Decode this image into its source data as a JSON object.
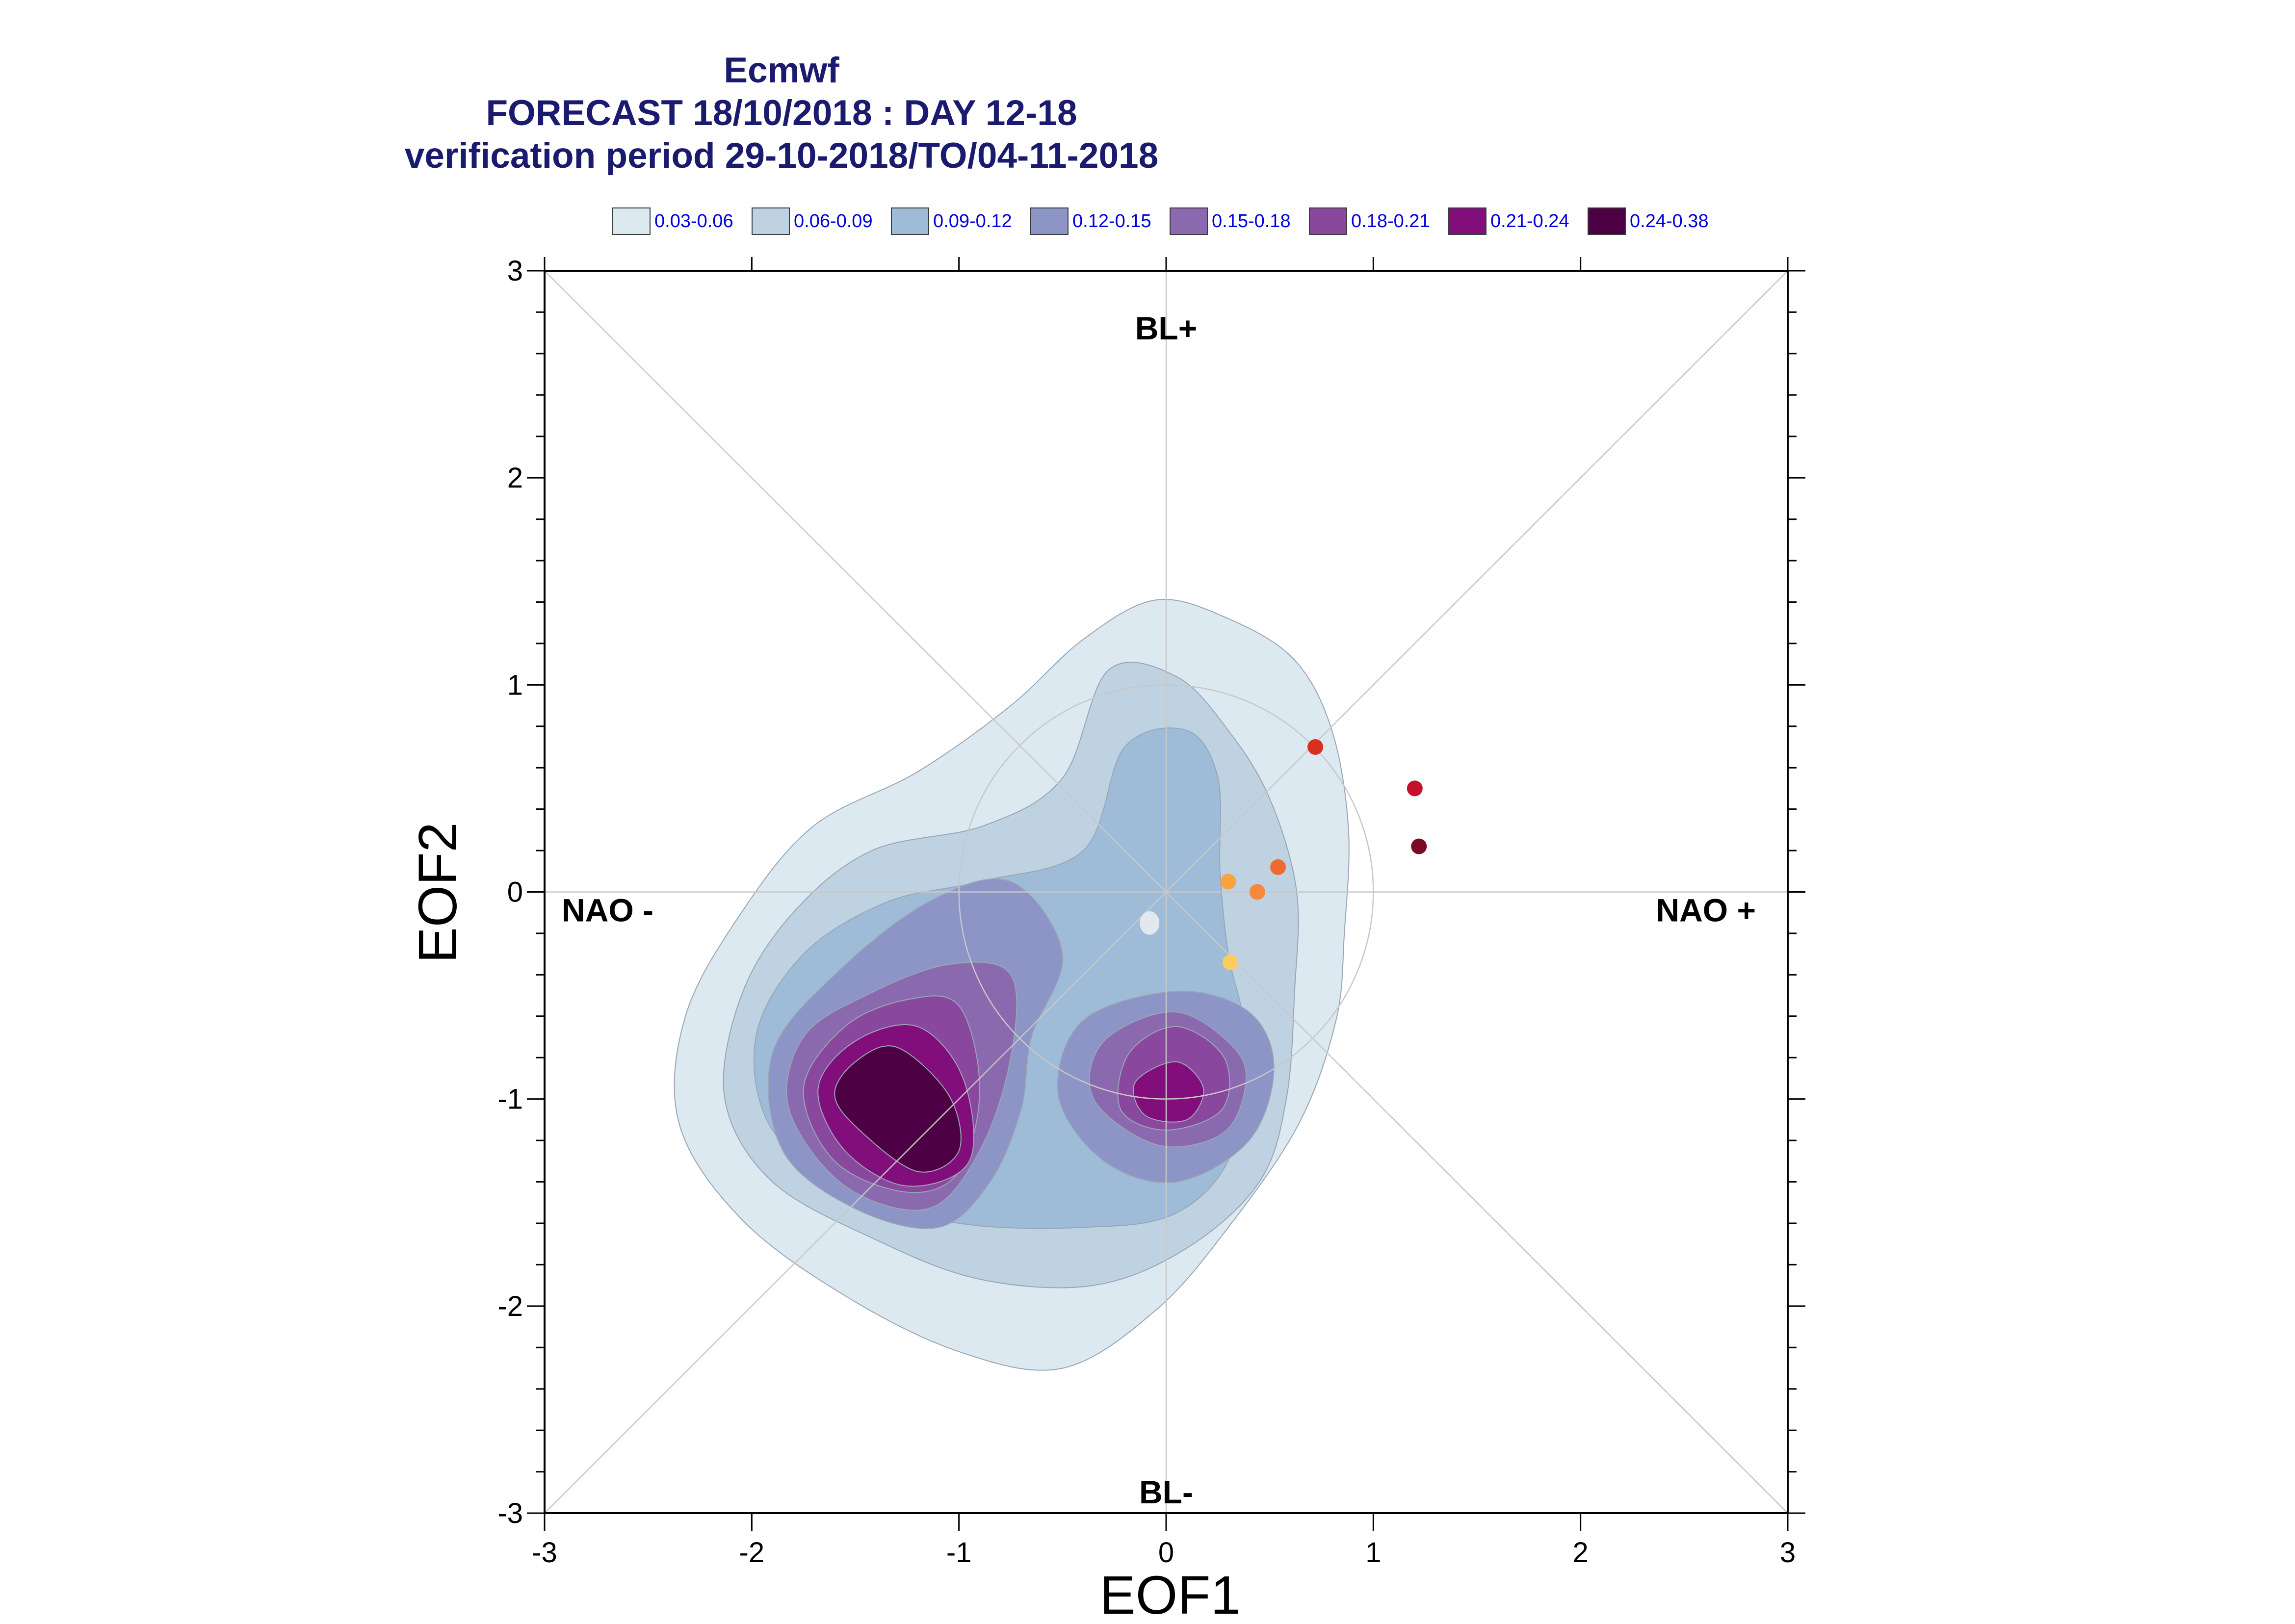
{
  "titles": {
    "line1": "Ecmwf",
    "line2": "FORECAST 18/10/2018 : DAY 12-18",
    "line3": "verification period 29-10-2018/TO/04-11-2018"
  },
  "legend": [
    {
      "label": "0.03-0.06",
      "color": "#dde9f1"
    },
    {
      "label": "0.06-0.09",
      "color": "#bed2e2"
    },
    {
      "label": "0.09-0.12",
      "color": "#9ebcd8"
    },
    {
      "label": "0.12-0.15",
      "color": "#8c95c5"
    },
    {
      "label": "0.15-0.18",
      "color": "#8a69ae"
    },
    {
      "label": "0.18-0.21",
      "color": "#8a479e"
    },
    {
      "label": "0.21-0.24",
      "color": "#820e7b"
    },
    {
      "label": "0.24-0.38",
      "color": "#4e0045"
    }
  ],
  "chart_data": {
    "type": "scatter",
    "xlabel": "EOF1",
    "ylabel": "EOF2",
    "xlim": [
      -3,
      3
    ],
    "ylim": [
      -3,
      3
    ],
    "xticks": [
      -3,
      -2,
      -1,
      0,
      1,
      2,
      3
    ],
    "yticks": [
      -3,
      -2,
      -1,
      0,
      1,
      2,
      3
    ],
    "regime_labels": {
      "top": "BL+",
      "bottom": "BL-",
      "left": "NAO -",
      "right": "NAO +"
    },
    "reference_circle_radius": 1.0,
    "points": [
      {
        "x": 0.72,
        "y": 0.7,
        "color": "#d7301f"
      },
      {
        "x": 1.2,
        "y": 0.5,
        "color": "#c3102f"
      },
      {
        "x": 1.22,
        "y": 0.22,
        "color": "#7a0a26"
      },
      {
        "x": 0.54,
        "y": 0.12,
        "color": "#ef6a30"
      },
      {
        "x": 0.3,
        "y": 0.05,
        "color": "#f7a43f"
      },
      {
        "x": 0.44,
        "y": 0.0,
        "color": "#f5883a"
      },
      {
        "x": 0.31,
        "y": -0.34,
        "color": "#fdcc5c"
      }
    ],
    "density_contours": [
      {
        "level": "0.03-0.06",
        "polygons": [
          [
            [
              -0.05,
              1.41
            ],
            [
              0.3,
              1.32
            ],
            [
              0.62,
              1.12
            ],
            [
              0.8,
              0.78
            ],
            [
              0.88,
              0.3
            ],
            [
              0.86,
              -0.2
            ],
            [
              0.82,
              -0.62
            ],
            [
              0.64,
              -1.12
            ],
            [
              0.3,
              -1.62
            ],
            [
              -0.05,
              -2.02
            ],
            [
              -0.5,
              -2.3
            ],
            [
              -1.0,
              -2.22
            ],
            [
              -1.55,
              -1.95
            ],
            [
              -2.05,
              -1.58
            ],
            [
              -2.35,
              -1.12
            ],
            [
              -2.32,
              -0.6
            ],
            [
              -2.05,
              -0.1
            ],
            [
              -1.7,
              0.32
            ],
            [
              -1.2,
              0.58
            ],
            [
              -0.75,
              0.9
            ],
            [
              -0.4,
              1.22
            ]
          ]
        ]
      },
      {
        "level": "0.06-0.09",
        "polygons": [
          [
            [
              -0.28,
              1.07
            ],
            [
              0.05,
              1.04
            ],
            [
              0.3,
              0.78
            ],
            [
              0.5,
              0.45
            ],
            [
              0.63,
              0.0
            ],
            [
              0.62,
              -0.48
            ],
            [
              0.58,
              -1.0
            ],
            [
              0.45,
              -1.4
            ],
            [
              0.1,
              -1.72
            ],
            [
              -0.35,
              -1.9
            ],
            [
              -0.9,
              -1.87
            ],
            [
              -1.4,
              -1.68
            ],
            [
              -1.9,
              -1.4
            ],
            [
              -2.13,
              -1.0
            ],
            [
              -2.05,
              -0.5
            ],
            [
              -1.8,
              -0.1
            ],
            [
              -1.42,
              0.2
            ],
            [
              -0.88,
              0.32
            ],
            [
              -0.5,
              0.55
            ]
          ]
        ]
      },
      {
        "level": "0.09-0.12",
        "polygons": [
          [
            [
              -0.2,
              0.7
            ],
            [
              0.1,
              0.78
            ],
            [
              0.25,
              0.55
            ],
            [
              0.26,
              0.1
            ],
            [
              0.3,
              -0.3
            ],
            [
              0.38,
              -0.7
            ],
            [
              0.32,
              -1.25
            ],
            [
              0.05,
              -1.55
            ],
            [
              -0.4,
              -1.62
            ],
            [
              -1.0,
              -1.6
            ],
            [
              -1.5,
              -1.45
            ],
            [
              -1.9,
              -1.15
            ],
            [
              -1.98,
              -0.7
            ],
            [
              -1.75,
              -0.3
            ],
            [
              -1.35,
              -0.05
            ],
            [
              -0.9,
              0.05
            ],
            [
              -0.4,
              0.2
            ]
          ]
        ]
      },
      {
        "level": "0.12-0.15",
        "polygons": [
          [
            [
              -0.75,
              0.05
            ],
            [
              -0.5,
              -0.3
            ],
            [
              -0.65,
              -0.7
            ],
            [
              -0.7,
              -1.05
            ],
            [
              -0.85,
              -1.4
            ],
            [
              -1.1,
              -1.62
            ],
            [
              -1.5,
              -1.53
            ],
            [
              -1.85,
              -1.25
            ],
            [
              -1.9,
              -0.78
            ],
            [
              -1.6,
              -0.4
            ],
            [
              -1.15,
              -0.05
            ]
          ],
          [
            [
              0.05,
              -0.48
            ],
            [
              0.4,
              -0.58
            ],
            [
              0.52,
              -0.85
            ],
            [
              0.4,
              -1.2
            ],
            [
              0.05,
              -1.4
            ],
            [
              -0.3,
              -1.3
            ],
            [
              -0.52,
              -0.98
            ],
            [
              -0.4,
              -0.62
            ]
          ]
        ]
      },
      {
        "level": "0.15-0.18",
        "polygons": [
          [
            [
              -0.75,
              -0.4
            ],
            [
              -0.75,
              -0.8
            ],
            [
              -0.9,
              -1.25
            ],
            [
              -1.15,
              -1.53
            ],
            [
              -1.55,
              -1.42
            ],
            [
              -1.82,
              -1.05
            ],
            [
              -1.75,
              -0.7
            ],
            [
              -1.45,
              -0.5
            ],
            [
              -1.05,
              -0.35
            ]
          ],
          [
            [
              0.05,
              -0.58
            ],
            [
              0.35,
              -0.78
            ],
            [
              0.37,
              -1.0
            ],
            [
              0.25,
              -1.18
            ],
            [
              -0.05,
              -1.22
            ],
            [
              -0.35,
              -1.0
            ],
            [
              -0.3,
              -0.72
            ]
          ]
        ]
      },
      {
        "level": "0.18-0.21",
        "polygons": [
          [
            [
              -1.0,
              -0.55
            ],
            [
              -0.9,
              -0.95
            ],
            [
              -1.0,
              -1.35
            ],
            [
              -1.25,
              -1.45
            ],
            [
              -1.6,
              -1.3
            ],
            [
              -1.75,
              -0.95
            ],
            [
              -1.55,
              -0.65
            ],
            [
              -1.25,
              -0.52
            ]
          ],
          [
            [
              0.05,
              -0.65
            ],
            [
              0.28,
              -0.8
            ],
            [
              0.27,
              -1.05
            ],
            [
              0.0,
              -1.15
            ],
            [
              -0.22,
              -1.05
            ],
            [
              -0.18,
              -0.78
            ]
          ]
        ]
      },
      {
        "level": "0.21-0.24",
        "polygons": [
          [
            [
              -1.2,
              -0.65
            ],
            [
              -0.98,
              -0.9
            ],
            [
              -0.95,
              -1.3
            ],
            [
              -1.25,
              -1.42
            ],
            [
              -1.55,
              -1.25
            ],
            [
              -1.68,
              -0.95
            ],
            [
              -1.5,
              -0.72
            ]
          ],
          [
            [
              0.05,
              -0.82
            ],
            [
              0.18,
              -0.95
            ],
            [
              0.1,
              -1.1
            ],
            [
              -0.1,
              -1.08
            ],
            [
              -0.15,
              -0.92
            ]
          ]
        ]
      },
      {
        "level": "0.24-0.38",
        "polygons": [
          [
            [
              -1.3,
              -0.75
            ],
            [
              -1.05,
              -0.98
            ],
            [
              -1.0,
              -1.25
            ],
            [
              -1.2,
              -1.35
            ],
            [
              -1.48,
              -1.15
            ],
            [
              -1.6,
              -0.98
            ],
            [
              -1.5,
              -0.82
            ]
          ]
        ]
      }
    ]
  }
}
